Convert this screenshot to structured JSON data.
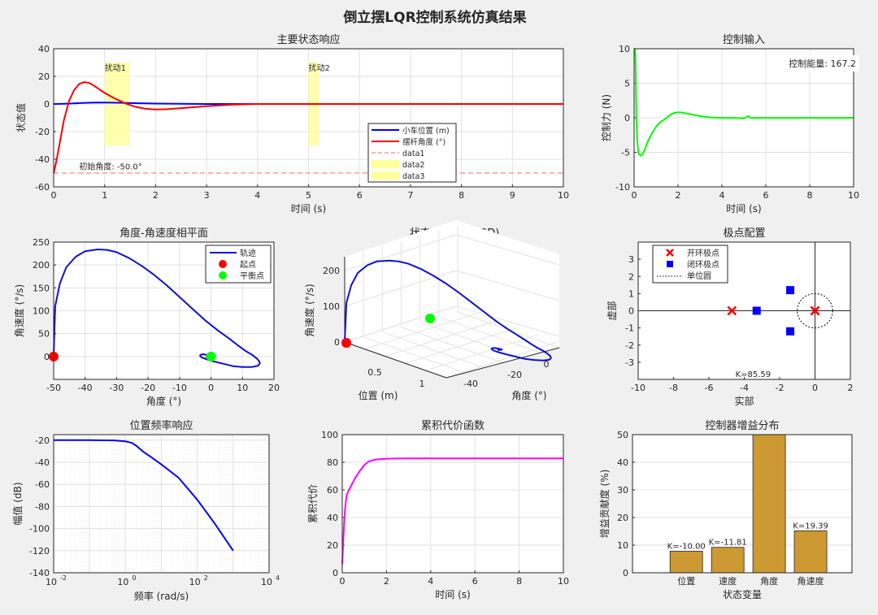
{
  "figure": {
    "title": "倒立摆LQR控制系统仿真结果"
  },
  "chart_data": [
    {
      "id": "states",
      "type": "line",
      "title": "主要状态响应",
      "xlabel": "时间 (s)",
      "ylabel": "状态值",
      "xlim": [
        0,
        10
      ],
      "ylim": [
        -60,
        40
      ],
      "xticks": [
        0,
        1,
        2,
        3,
        4,
        5,
        6,
        7,
        8,
        9,
        10
      ],
      "yticks": [
        -60,
        -40,
        -20,
        0,
        20,
        40
      ],
      "grid": true,
      "legend": {
        "placement": "lower-right-center",
        "entries": [
          "小车位置 (m)",
          "摆杆角度 (°)",
          "data1",
          "data2",
          "data3"
        ]
      },
      "series": [
        {
          "name": "小车位置 (m)",
          "color": "#0000ff",
          "x": [
            0,
            0.2,
            0.4,
            0.6,
            0.8,
            1.0,
            1.3,
            1.6,
            2.0,
            2.5,
            3.0,
            3.5,
            4,
            5,
            6,
            7,
            8,
            9,
            10
          ],
          "y": [
            0,
            0.2,
            0.5,
            0.8,
            1.0,
            1.0,
            0.9,
            0.6,
            0.3,
            0.1,
            0,
            0,
            0,
            0,
            0,
            0,
            0,
            0,
            0
          ]
        },
        {
          "name": "摆杆角度 (°)",
          "color": "#ff0000",
          "x": [
            0,
            0.05,
            0.1,
            0.15,
            0.2,
            0.3,
            0.4,
            0.5,
            0.6,
            0.7,
            0.8,
            0.9,
            1.0,
            1.2,
            1.4,
            1.6,
            1.8,
            2.0,
            2.2,
            2.5,
            3.0,
            3.5,
            4,
            5,
            6,
            7,
            8,
            9,
            10
          ],
          "y": [
            -50,
            -42,
            -32,
            -22,
            -12,
            2,
            10,
            14.5,
            15.8,
            15.2,
            13,
            10.5,
            8,
            4,
            0.5,
            -2,
            -3.5,
            -4,
            -3.8,
            -3,
            -1.5,
            -0.5,
            0,
            0,
            0,
            0,
            0,
            0,
            0
          ]
        },
        {
          "name": "data1",
          "color": "#ff6666",
          "style": "dashed",
          "x": [
            0,
            10
          ],
          "y": [
            -50,
            -50
          ]
        }
      ],
      "bands": [
        {
          "name": "data2",
          "label": "扰动1",
          "x": [
            1.0,
            1.5
          ],
          "y": [
            -30,
            30
          ],
          "color": "#ffff99"
        },
        {
          "name": "data3",
          "label": "扰动2",
          "x": [
            5.0,
            5.2
          ],
          "y": [
            -30,
            30
          ],
          "color": "#ffff99"
        }
      ],
      "annotations": [
        {
          "text": "初始角度: -50.0°",
          "x": 0.5,
          "y": -48,
          "color": "#ff0000"
        }
      ]
    },
    {
      "id": "control",
      "type": "line",
      "title": "控制输入",
      "xlabel": "时间 (s)",
      "ylabel": "控制力 (N)",
      "xlim": [
        0,
        10
      ],
      "ylim": [
        -10,
        10
      ],
      "xticks": [
        0,
        2,
        4,
        6,
        8,
        10
      ],
      "yticks": [
        -10,
        -5,
        0,
        5,
        10
      ],
      "grid": true,
      "series": [
        {
          "name": "控制力",
          "color": "#00ff00",
          "x": [
            0,
            0.02,
            0.04,
            0.06,
            0.08,
            0.1,
            0.15,
            0.2,
            0.3,
            0.4,
            0.5,
            0.6,
            0.8,
            1.0,
            1.2,
            1.4,
            1.6,
            1.8,
            2.0,
            2.2,
            2.5,
            3.0,
            3.5,
            4.0,
            4.5,
            5.0,
            5.1,
            5.2,
            5.3,
            5.5,
            6,
            7,
            8,
            9,
            10
          ],
          "y": [
            10,
            10,
            10,
            9,
            5,
            0,
            -3.5,
            -5.2,
            -5.5,
            -5.2,
            -4.5,
            -3.6,
            -2.3,
            -1.3,
            -0.6,
            -0.2,
            0.3,
            0.7,
            0.8,
            0.75,
            0.55,
            0.25,
            0.05,
            0,
            0,
            -0.1,
            0.1,
            0.25,
            -0.05,
            0,
            0,
            0,
            0,
            0,
            0
          ]
        }
      ],
      "annotations": [
        {
          "text": "控制能量: 167.2"
        }
      ]
    },
    {
      "id": "phase",
      "type": "line",
      "title": "角度-角速度相平面",
      "xlabel": "角度 (°)",
      "ylabel": "角速度 (°/s)",
      "xlim": [
        -50,
        20
      ],
      "ylim": [
        -50,
        250
      ],
      "xticks": [
        -50,
        -40,
        -30,
        -20,
        -10,
        0,
        10,
        20
      ],
      "yticks": [
        0,
        50,
        100,
        150,
        200,
        250
      ],
      "grid": true,
      "legend": {
        "placement": "top-right",
        "entries": [
          "轨迹",
          "起点",
          "平衡点"
        ]
      },
      "series": [
        {
          "name": "轨迹",
          "color": "#1010d0",
          "x": [
            -50,
            -49.5,
            -48,
            -46,
            -43,
            -40,
            -36,
            -33,
            -30,
            -26,
            -22,
            -18,
            -14,
            -10,
            -6,
            -2,
            2,
            6,
            9,
            11,
            13,
            14.5,
            15.3,
            15.5,
            15,
            13,
            10,
            7,
            4,
            1,
            -1,
            -3,
            -3.5,
            -3.3,
            -2.5,
            -1,
            0,
            -0.5,
            -1.5,
            -1
          ],
          "y": [
            0,
            110,
            160,
            195,
            218,
            230,
            234,
            233,
            228,
            215,
            198,
            178,
            155,
            130,
            105,
            80,
            58,
            38,
            22,
            12,
            4,
            -4,
            -10,
            -15,
            -20,
            -23,
            -23,
            -21,
            -16,
            -11,
            -7,
            -2,
            2,
            4,
            5,
            3,
            2,
            1,
            -1,
            0
          ]
        },
        {
          "name": "起点",
          "type": "marker",
          "color": "#ff0000",
          "x": [
            -50
          ],
          "y": [
            0
          ]
        },
        {
          "name": "平衡点",
          "type": "marker",
          "color": "#00ff00",
          "x": [
            0
          ],
          "y": [
            0
          ]
        }
      ]
    },
    {
      "id": "traj3d",
      "type": "line",
      "title": "状态空间轨迹 (3D)",
      "xlabel": "位置 (m)",
      "ylabel": "角度 (°)",
      "zlabel": "角速度 (°/s)",
      "position_ticks": [
        0.5,
        1
      ],
      "angle_ticks": [
        -40,
        -20,
        0
      ],
      "velocity_ticks": [
        0,
        100,
        200
      ],
      "grid": true,
      "series": [
        {
          "name": "轨迹",
          "color": "#1010d0"
        }
      ],
      "markers": [
        {
          "name": "起点",
          "color": "#ff0000"
        },
        {
          "name": "平衡点",
          "color": "#00ff00"
        }
      ]
    },
    {
      "id": "poles",
      "type": "scatter",
      "title": "极点配置",
      "xlabel": "实部",
      "ylabel": "虚部",
      "xlim": [
        -10,
        2
      ],
      "ylim": [
        -4,
        4
      ],
      "xticks": [
        -10,
        -8,
        -6,
        -4,
        -2,
        0,
        2
      ],
      "yticks": [
        -3,
        -2,
        -1,
        0,
        1,
        2,
        3
      ],
      "grid": false,
      "legend": {
        "placement": "top-left",
        "entries": [
          "开环极点",
          "闭环极点",
          "单位圆"
        ]
      },
      "series": [
        {
          "name": "开环极点",
          "marker": "x",
          "color": "#ff0000",
          "x": [
            -4.7,
            0,
            0
          ],
          "y": [
            0,
            0,
            0
          ]
        },
        {
          "name": "闭环极点",
          "marker": "square",
          "color": "#0000ff",
          "x": [
            -3.3,
            -1.4,
            -1.4
          ],
          "y": [
            0,
            1.2,
            -1.2
          ]
        },
        {
          "name": "单位圆",
          "marker": "dotted-circle",
          "color": "#000000",
          "center": [
            0,
            0
          ],
          "radius": 1
        }
      ],
      "annotations": [
        {
          "text": "K=85.59"
        }
      ]
    },
    {
      "id": "bode",
      "type": "line",
      "title": "位置频率响应",
      "xlabel": "频率 (rad/s)",
      "ylabel": "幅值 (dB)",
      "xscale": "log",
      "xlim": [
        0.01,
        10000
      ],
      "ylim": [
        -140,
        -15
      ],
      "xticks_exp": [
        -2,
        0,
        2,
        4
      ],
      "yticks": [
        -140,
        -120,
        -100,
        -80,
        -60,
        -40,
        -20
      ],
      "grid": true,
      "series": [
        {
          "name": "幅值",
          "color": "#0000ff",
          "x": [
            0.01,
            0.1,
            0.5,
            1,
            1.5,
            2,
            3,
            5,
            10,
            30,
            100,
            300,
            1000
          ],
          "y": [
            -20,
            -20,
            -20.2,
            -21,
            -22.5,
            -25,
            -30,
            -35,
            -42,
            -54,
            -74,
            -95,
            -120
          ]
        }
      ]
    },
    {
      "id": "cost",
      "type": "line",
      "title": "累积代价函数",
      "xlabel": "时间 (s)",
      "ylabel": "累积代价",
      "xlim": [
        0,
        10
      ],
      "ylim": [
        0,
        100
      ],
      "xticks": [
        0,
        2,
        4,
        6,
        8,
        10
      ],
      "yticks": [
        0,
        20,
        40,
        60,
        80,
        100
      ],
      "grid": true,
      "series": [
        {
          "name": "累积代价",
          "color": "#ff00ff",
          "x": [
            0,
            0.05,
            0.1,
            0.15,
            0.2,
            0.3,
            0.4,
            0.5,
            0.6,
            0.8,
            1.0,
            1.2,
            1.5,
            2.0,
            2.5,
            3,
            4,
            5,
            6,
            7,
            8,
            9,
            10
          ],
          "y": [
            6,
            25,
            40,
            50,
            56,
            60,
            63,
            66,
            69,
            74,
            78,
            80.5,
            82,
            82.6,
            82.7,
            82.8,
            82.8,
            82.8,
            82.8,
            82.8,
            82.8,
            82.8,
            82.8
          ]
        }
      ]
    },
    {
      "id": "gains",
      "type": "bar",
      "title": "控制器增益分布",
      "xlabel": "状态变量",
      "ylabel": "增益贡献度 (%)",
      "categories": [
        "位置",
        "速度",
        "角度",
        "角速度"
      ],
      "values": [
        7.8,
        9.2,
        50,
        15.2
      ],
      "value_labels": [
        "K=-10.00",
        "K=-11.81",
        "",
        "K=19.39"
      ],
      "ylim": [
        0,
        50
      ],
      "yticks": [
        0,
        10,
        20,
        30,
        40,
        50
      ],
      "color": "#cc9933",
      "grid": true
    }
  ]
}
